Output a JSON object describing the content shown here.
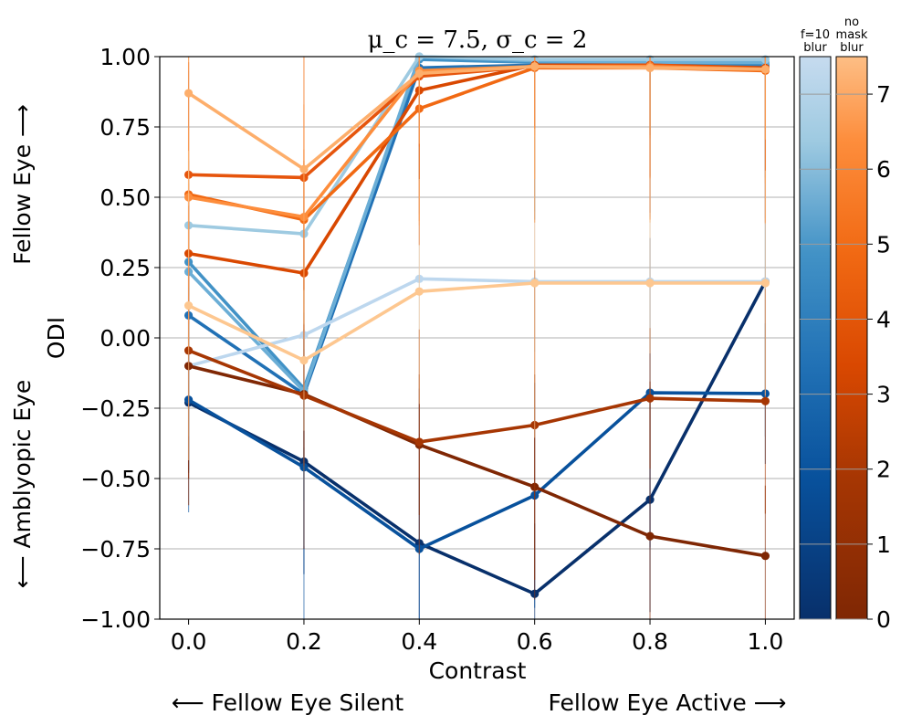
{
  "chart_data": {
    "type": "line",
    "title": "μ_c = 7.5, σ_c = 2",
    "xlabel": "Contrast",
    "ylabel": "ODI",
    "xlim": [
      -0.05,
      1.05
    ],
    "ylim": [
      -1.0,
      1.0
    ],
    "xticks": [
      "0.0",
      "0.2",
      "0.4",
      "0.6",
      "0.8",
      "1.0"
    ],
    "yticks": [
      "−1.00",
      "−0.75",
      "−0.50",
      "−0.25",
      "0.00",
      "0.25",
      "0.50",
      "0.75",
      "1.00"
    ],
    "grid": "horizontal",
    "x": [
      0.0,
      0.2,
      0.4,
      0.6,
      0.8,
      1.0
    ],
    "ylabel_upper": "Fellow Eye ⟶",
    "ylabel_lower": "⟵ Amblyopic Eye",
    "xlabel_left": "⟵ Fellow Eye Silent",
    "xlabel_right": "Fellow Eye Active ⟶",
    "colorbars": [
      {
        "title": "f=10\nblur",
        "colormap": "Blues",
        "range": [
          0,
          7.5
        ]
      },
      {
        "title": "no\nmask\nblur",
        "colormap": "Oranges",
        "range": [
          0,
          7.5
        ]
      }
    ],
    "colorbar_ticks": [
      "0",
      "1",
      "2",
      "3",
      "4",
      "5",
      "6",
      "7"
    ],
    "series": [
      {
        "color": "#08306b",
        "values": [
          -0.23,
          -0.44,
          -0.73,
          -0.91,
          -0.575,
          0.2
        ]
      },
      {
        "color": "#08519c",
        "values": [
          -0.22,
          -0.46,
          -0.75,
          -0.56,
          -0.195,
          -0.198
        ]
      },
      {
        "color": "#2171b5",
        "values": [
          0.08,
          -0.2,
          0.96,
          0.97,
          0.97,
          0.97
        ]
      },
      {
        "color": "#4292c6",
        "values": [
          0.27,
          -0.18,
          0.99,
          0.98,
          0.975,
          0.975
        ]
      },
      {
        "color": "#6baed6",
        "values": [
          0.235,
          -0.19,
          1.0,
          0.985,
          0.98,
          0.98
        ]
      },
      {
        "color": "#9ecae1",
        "values": [
          0.4,
          0.37,
          1.0,
          0.99,
          0.99,
          0.99
        ]
      },
      {
        "color": "#bdd7ee",
        "values": [
          -0.1,
          0.01,
          0.21,
          0.2,
          0.2,
          0.2
        ]
      },
      {
        "color": "#7f2704",
        "values": [
          -0.1,
          -0.2,
          -0.38,
          -0.53,
          -0.705,
          -0.775
        ]
      },
      {
        "color": "#a63603",
        "values": [
          -0.045,
          -0.205,
          -0.37,
          -0.31,
          -0.215,
          -0.225
        ]
      },
      {
        "color": "#d94801",
        "values": [
          0.3,
          0.23,
          0.88,
          0.97,
          0.97,
          0.96
        ]
      },
      {
        "color": "#e6550d",
        "values": [
          0.58,
          0.57,
          0.93,
          0.965,
          0.97,
          0.955
        ]
      },
      {
        "color": "#f16913",
        "values": [
          0.51,
          0.42,
          0.815,
          0.96,
          0.96,
          0.95
        ]
      },
      {
        "color": "#fd8d3c",
        "values": [
          0.5,
          0.43,
          0.95,
          0.965,
          0.965,
          0.955
        ]
      },
      {
        "color": "#fdae6b",
        "values": [
          0.87,
          0.6,
          0.94,
          0.965,
          0.96,
          0.955
        ]
      },
      {
        "color": "#fdc790",
        "values": [
          0.115,
          -0.08,
          0.165,
          0.195,
          0.195,
          0.195
        ]
      }
    ]
  }
}
